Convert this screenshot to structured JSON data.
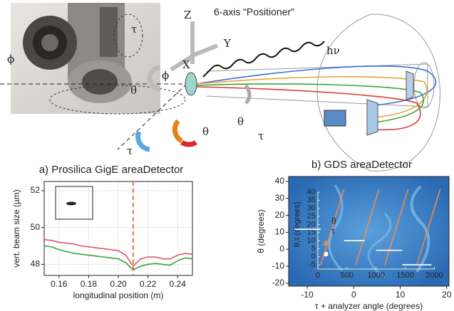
{
  "diagram": {
    "labels": [
      "6-axis “Positioner”",
      "Z",
      "Y",
      "X",
      "hν",
      "ϕ",
      "θ",
      "τ",
      "θ",
      "θ",
      "τ",
      "ϕ",
      "τ"
    ]
  },
  "chart_data": [
    {
      "type": "line",
      "title": "a) Prosilica GigE areaDetector",
      "xlabel": "longitudinal position (m)",
      "ylabel": "vert. beam size (µm)",
      "x": [
        0.15,
        0.155,
        0.16,
        0.165,
        0.17,
        0.175,
        0.18,
        0.185,
        0.19,
        0.195,
        0.2,
        0.205,
        0.21,
        0.215,
        0.22,
        0.225,
        0.23,
        0.235,
        0.24,
        0.245,
        0.25
      ],
      "series": [
        {
          "color": "#e8506a",
          "values": [
            49.35,
            49.3,
            49.2,
            49.15,
            49.1,
            49.0,
            48.95,
            48.9,
            48.85,
            48.8,
            48.75,
            48.5,
            47.9,
            48.3,
            48.4,
            48.4,
            48.3,
            48.3,
            48.5,
            48.6,
            48.55
          ]
        },
        {
          "color": "#3aa23a",
          "values": [
            49.0,
            48.95,
            48.8,
            48.7,
            48.6,
            48.55,
            48.5,
            48.45,
            48.4,
            48.35,
            48.3,
            48.1,
            47.7,
            47.9,
            48.0,
            48.05,
            48.0,
            47.95,
            48.2,
            48.35,
            48.3
          ]
        }
      ],
      "xlim": [
        0.15,
        0.25
      ],
      "ylim": [
        47.4,
        52.5
      ],
      "xticks": [
        0.16,
        0.18,
        {
          "value": 0.2,
          "label": "0.20"
        },
        0.22,
        0.24
      ],
      "yticks": [
        48,
        50,
        52
      ],
      "grid": true,
      "vline": {
        "x": 0.21,
        "color": "#e8552a"
      }
    },
    {
      "type": "line",
      "title": "b) GDS areaDetector",
      "xlabel": "τ + analyzer angle (degrees)",
      "ylabel": "θ (degrees)",
      "xlim": [
        -14,
        20.5
      ],
      "ylim": [
        -21.7,
        42.9
      ],
      "xticks": [
        -10,
        0,
        10,
        20
      ],
      "yticks": [
        -20,
        -10,
        0,
        10,
        20,
        30,
        40
      ],
      "grid": false,
      "inner_axis": {
        "ylabel": "θ,τ (degrees)",
        "xlim": [
          -500,
          2250
        ],
        "ylim": [
          -18.2,
          49.7
        ],
        "xticks": [
          0,
          500,
          1000,
          1500,
          2000
        ],
        "yticks": [
          40,
          35,
          30,
          25,
          20,
          15,
          10,
          5,
          0,
          -5
        ]
      },
      "series": [
        {
          "name": "θ",
          "color": "#f08a4b",
          "axis": "inner",
          "x": [
            50,
            450,
            null,
            650,
            1050,
            null,
            1150,
            1550,
            null,
            1700,
            2100
          ],
          "values": [
            -5,
            42,
            null,
            -5,
            42,
            null,
            -5,
            42,
            null,
            -5,
            42
          ]
        },
        {
          "name": "τ",
          "color": "#ffffff",
          "axis": "inner",
          "x": [
            -400,
            50,
            null,
            450,
            800,
            null,
            1000,
            1450,
            null,
            1450,
            1950
          ],
          "values": [
            17,
            17,
            null,
            10,
            10,
            null,
            4,
            4,
            null,
            -5,
            -5
          ]
        }
      ]
    }
  ]
}
